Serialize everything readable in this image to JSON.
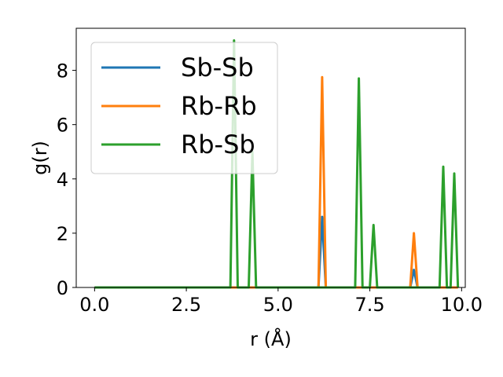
{
  "chart_data": {
    "type": "line",
    "xlabel": "r (Å)",
    "ylabel": "g(r)",
    "xlim": [
      -0.5,
      10.1
    ],
    "ylim": [
      0,
      9.55
    ],
    "xticks": [
      0.0,
      2.5,
      5.0,
      7.5,
      10.0
    ],
    "xtick_labels": [
      "0.0",
      "2.5",
      "5.0",
      "7.5",
      "10.0"
    ],
    "yticks": [
      0,
      2,
      4,
      6,
      8
    ],
    "ytick_labels": [
      "0",
      "2",
      "4",
      "6",
      "8"
    ],
    "grid": false,
    "legend_position": "upper-left",
    "series": [
      {
        "name": "Sb-Sb",
        "color": "#1f77b4",
        "x": [
          0.0,
          6.1,
          6.2,
          6.3,
          8.6,
          8.7,
          8.8,
          9.9
        ],
        "y": [
          0,
          0,
          2.6,
          0,
          0,
          0.65,
          0,
          0
        ]
      },
      {
        "name": "Rb-Rb",
        "color": "#ff7f0e",
        "x": [
          0.0,
          6.1,
          6.2,
          6.3,
          8.6,
          8.7,
          8.8,
          9.9
        ],
        "y": [
          0,
          0,
          7.75,
          0,
          0,
          2.0,
          0,
          0
        ]
      },
      {
        "name": "Rb-Sb",
        "color": "#2ca02c",
        "x": [
          0.0,
          3.7,
          3.8,
          3.9,
          4.2,
          4.3,
          4.4,
          7.1,
          7.2,
          7.3,
          7.5,
          7.6,
          7.7,
          9.4,
          9.5,
          9.6,
          9.7,
          9.8,
          9.9
        ],
        "y": [
          0,
          0,
          9.1,
          0,
          0,
          5.0,
          0,
          0,
          7.7,
          0,
          0,
          2.3,
          0,
          0,
          4.45,
          0,
          0,
          4.2,
          0
        ]
      }
    ]
  }
}
